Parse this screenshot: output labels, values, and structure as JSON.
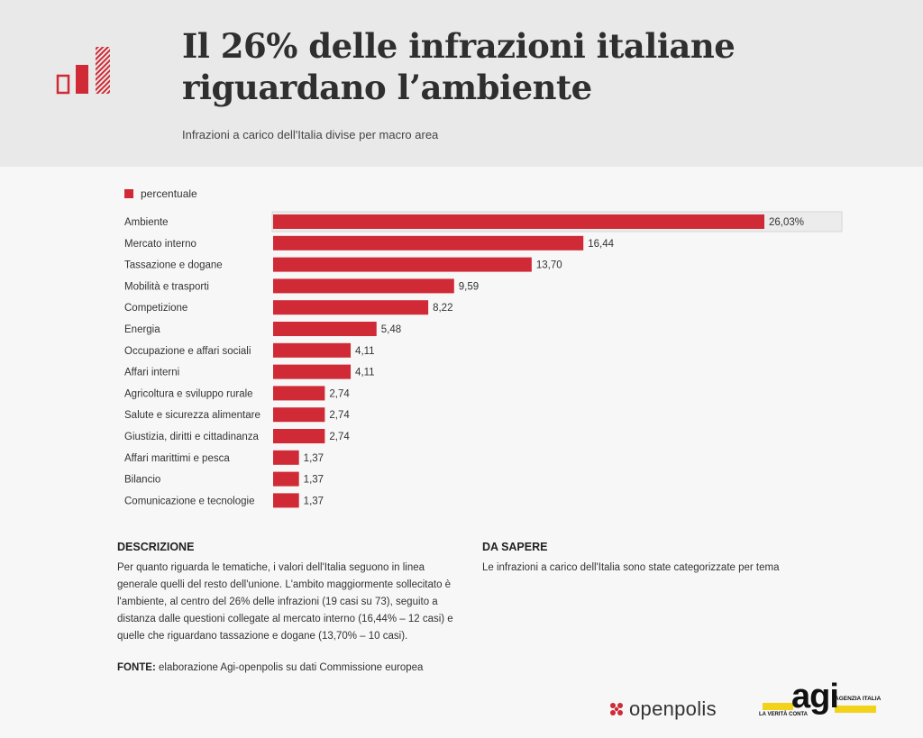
{
  "header": {
    "title": "Il 26% delle infrazioni italiane riguardano l’ambiente",
    "subtitle": "Infrazioni a carico dell'Italia divise per macro area"
  },
  "colors": {
    "bar": "#cf2a35",
    "header_bg": "#e9e9e9",
    "highlight_bg": "#ececec"
  },
  "chart_data": {
    "type": "bar",
    "orientation": "horizontal",
    "legend": [
      "percentuale"
    ],
    "legend_position": "top-left",
    "grid": false,
    "xlim": [
      0,
      26.03
    ],
    "categories": [
      "Ambiente",
      "Mercato interno",
      "Tassazione e dogane",
      "Mobilità e trasporti",
      "Competizione",
      "Energia",
      "Occupazione e affari sociali",
      "Affari interni",
      "Agricoltura e sviluppo rurale",
      "Salute e sicurezza alimentare",
      "Giustizia, diritti e cittadinanza",
      "Affari marittimi e pesca",
      "Bilancio",
      "Comunicazione e tecnologie"
    ],
    "series": [
      {
        "name": "percentuale",
        "values": [
          26.03,
          16.44,
          13.7,
          9.59,
          8.22,
          5.48,
          4.11,
          4.11,
          2.74,
          2.74,
          2.74,
          1.37,
          1.37,
          1.37
        ],
        "labels": [
          "26,03%",
          "16,44",
          "13,70",
          "9,59",
          "8,22",
          "5,48",
          "4,11",
          "4,11",
          "2,74",
          "2,74",
          "2,74",
          "1,37",
          "1,37",
          "1,37"
        ]
      }
    ],
    "highlighted_category": "Ambiente"
  },
  "description": {
    "heading": "DESCRIZIONE",
    "text": "Per quanto riguarda le tematiche, i valori dell'Italia seguono in linea generale quelli del resto dell'unione. L'ambito maggiormente sollecitato è l'ambiente, al centro del 26% delle infrazioni (19 casi su 73), seguito a distanza dalle questioni collegate al mercato interno (16,44% – 12 casi) e quelle che riguardano tassazione e dogane (13,70% – 10 casi)."
  },
  "know": {
    "heading": "DA SAPERE",
    "text": "Le infrazioni a carico dell'Italia sono state categorizzate per tema"
  },
  "source": {
    "label": "FONTE:",
    "text": "elaborazione Agi-openpolis su dati Commissione europea"
  },
  "footer": {
    "openpolis": "openpolis",
    "agi": "agi",
    "agi_tag": "AGENZIA ITALIA",
    "agi_claim": "LA VERITÀ CONTA"
  }
}
